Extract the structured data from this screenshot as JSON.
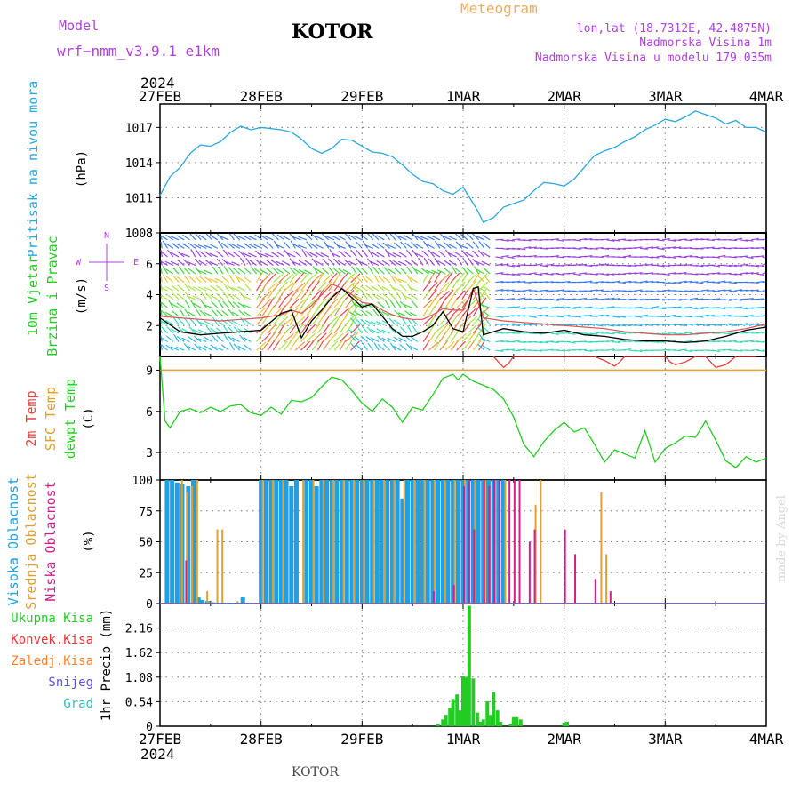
{
  "header": {
    "model_label": "Model",
    "model_name": "wrf−nmm_v3.9.1  e1km",
    "station": "KOTOR",
    "meteogram": "Meteogram",
    "lonlat": "lon,lat (18.7312E, 42.4875N)",
    "elevation": "Nadmorska Visina 1m",
    "model_elevation": "Nadmorska Visina u modelu 179.035m",
    "year_top": "2024",
    "year_bottom": "2024",
    "footer_station": "KOTOR",
    "credit": "made by Angel"
  },
  "colors": {
    "pressure": "#2aa8e0",
    "temp_2m": "#e8403a",
    "sfc_temp": "#e3a02c",
    "dewpt": "#22cc22",
    "high_cloud": "#1fa0e6",
    "mid_cloud": "#e0a030",
    "low_cloud": "#d02090",
    "total_precip": "#22cc22",
    "conv_precip": "#ee3333",
    "frz_precip": "#ff7f27",
    "snow": "#5555dd",
    "hail": "#33bbbb",
    "purple_text": "#b040e0",
    "orange_text": "#e8b060"
  },
  "chart_data": [
    {
      "type": "line",
      "panel": "pressure",
      "ylabel_left": "Pritisak na nivou mora",
      "unit": "(hPa)",
      "x_ticks": [
        "27FEB",
        "28FEB",
        "29FEB",
        "1MAR",
        "2MAR",
        "3MAR",
        "4MAR"
      ],
      "x_range_days": [
        0,
        6
      ],
      "ylim": [
        1008,
        1019
      ],
      "y_ticks": [
        1008,
        1011,
        1014,
        1017
      ],
      "grid": true,
      "series": [
        {
          "key": "pressure",
          "x": [
            0,
            0.1,
            0.2,
            0.3,
            0.4,
            0.5,
            0.6,
            0.7,
            0.8,
            0.9,
            1.0,
            1.1,
            1.2,
            1.3,
            1.4,
            1.5,
            1.6,
            1.7,
            1.8,
            1.9,
            2.0,
            2.1,
            2.2,
            2.3,
            2.4,
            2.5,
            2.6,
            2.7,
            2.8,
            2.9,
            3.0,
            3.1,
            3.15,
            3.2,
            3.3,
            3.4,
            3.5,
            3.6,
            3.7,
            3.8,
            3.9,
            4.0,
            4.1,
            4.2,
            4.3,
            4.4,
            4.5,
            4.6,
            4.7,
            4.8,
            4.9,
            5.0,
            5.1,
            5.2,
            5.3,
            5.4,
            5.5,
            5.6,
            5.7,
            5.8,
            5.9,
            6.0
          ],
          "y": [
            1011.2,
            1012.8,
            1013.6,
            1014.8,
            1015.5,
            1015.4,
            1015.8,
            1016.6,
            1017.1,
            1016.8,
            1017.0,
            1016.9,
            1016.8,
            1016.6,
            1016.0,
            1015.2,
            1014.8,
            1015.2,
            1016.0,
            1015.9,
            1015.4,
            1014.9,
            1014.8,
            1014.5,
            1013.8,
            1013.0,
            1012.4,
            1012.2,
            1011.6,
            1011.3,
            1011.9,
            1010.5,
            1009.8,
            1008.9,
            1009.3,
            1010.2,
            1010.5,
            1010.8,
            1011.6,
            1012.3,
            1012.2,
            1012.0,
            1012.6,
            1013.6,
            1014.6,
            1015.0,
            1015.3,
            1015.8,
            1016.2,
            1016.8,
            1017.2,
            1017.7,
            1017.5,
            1017.9,
            1018.4,
            1018.1,
            1017.8,
            1017.3,
            1017.6,
            1017.0,
            1017.0,
            1016.6
          ]
        }
      ]
    },
    {
      "type": "line",
      "panel": "wind",
      "ylabel_left": [
        "10m Vjetar",
        "Brzina i Pravac"
      ],
      "unit": "(m/s)",
      "compass": [
        "N",
        "W",
        "E",
        "S"
      ],
      "ylim": [
        0,
        8
      ],
      "y_ticks": [
        2,
        4,
        6,
        8
      ],
      "note": "dense colored wind-direction arrows fill the panel",
      "series": [
        {
          "key": "speed",
          "color": "#000000",
          "x": [
            0,
            0.2,
            0.4,
            0.6,
            0.8,
            1.0,
            1.2,
            1.3,
            1.4,
            1.5,
            1.6,
            1.7,
            1.8,
            1.9,
            2.0,
            2.1,
            2.2,
            2.3,
            2.4,
            2.5,
            2.6,
            2.7,
            2.8,
            2.9,
            3.0,
            3.1,
            3.15,
            3.2,
            3.3,
            3.4,
            3.6,
            3.8,
            4.0,
            4.2,
            4.4,
            4.6,
            4.8,
            5.0,
            5.2,
            5.4,
            5.6,
            5.8,
            6.0
          ],
          "y": [
            2.5,
            1.6,
            1.4,
            1.5,
            1.6,
            1.7,
            2.8,
            3.0,
            1.2,
            2.3,
            3.0,
            3.8,
            4.4,
            3.8,
            3.2,
            3.4,
            2.6,
            1.8,
            1.3,
            1.3,
            1.6,
            2.0,
            2.9,
            1.8,
            1.6,
            4.4,
            4.5,
            1.4,
            1.6,
            1.8,
            1.6,
            1.5,
            1.7,
            1.4,
            1.3,
            1.1,
            1.0,
            1.0,
            0.9,
            1.0,
            1.3,
            1.7,
            1.9
          ]
        },
        {
          "key": "gust",
          "color": "#e05050",
          "x": [
            0,
            0.2,
            0.4,
            0.6,
            0.8,
            1.0,
            1.2,
            1.3,
            1.4,
            1.5,
            1.6,
            1.7,
            1.8,
            1.9,
            2.0,
            2.1,
            2.2,
            2.3,
            2.4,
            2.5,
            2.6,
            2.7,
            2.8,
            2.9,
            3.0,
            3.1,
            3.2,
            3.3,
            3.4,
            3.6,
            3.8,
            4.0,
            4.2,
            4.4,
            4.6,
            4.8,
            5.0,
            5.2,
            5.4,
            5.6,
            5.8,
            6.0
          ],
          "y": [
            2.6,
            2.5,
            2.4,
            2.3,
            2.4,
            2.5,
            2.7,
            3.0,
            2.8,
            3.3,
            4.0,
            4.7,
            4.4,
            4.0,
            3.5,
            3.4,
            3.0,
            2.7,
            2.5,
            2.4,
            2.4,
            2.7,
            3.1,
            3.0,
            3.0,
            4.4,
            2.5,
            2.4,
            2.3,
            2.2,
            2.1,
            2.0,
            1.9,
            1.8,
            1.6,
            1.5,
            1.4,
            1.4,
            1.5,
            1.6,
            1.8,
            2.1
          ]
        }
      ]
    },
    {
      "type": "line",
      "panel": "temperature",
      "ylabel_left": [
        "2m Temp",
        "SFC Temp",
        "dewpt Temp"
      ],
      "unit": "(C)",
      "ylim": [
        1,
        10
      ],
      "y_ticks": [
        3,
        6,
        9
      ],
      "series": [
        {
          "key": "temp_2m",
          "x": [
            3.3,
            3.35,
            3.4,
            3.45,
            3.5,
            3.9,
            4.3,
            4.4,
            4.5,
            4.55,
            4.6,
            4.65,
            5.0,
            5.05,
            5.1,
            5.2,
            5.3,
            5.4,
            5.5,
            5.6,
            5.7,
            5.8,
            5.9
          ],
          "y": [
            10,
            9.6,
            9.2,
            9.5,
            10,
            10,
            10,
            9.7,
            9.3,
            9.6,
            10,
            10,
            10,
            9.6,
            9.4,
            9.6,
            10,
            10,
            9.2,
            9.4,
            10,
            10,
            10
          ]
        },
        {
          "key": "sfc_temp",
          "x": [
            0,
            6
          ],
          "y": [
            9.0,
            9.0
          ]
        },
        {
          "key": "dewpt",
          "x": [
            0,
            0.05,
            0.1,
            0.15,
            0.2,
            0.3,
            0.4,
            0.5,
            0.6,
            0.7,
            0.8,
            0.9,
            1.0,
            1.1,
            1.2,
            1.3,
            1.4,
            1.5,
            1.6,
            1.7,
            1.8,
            1.9,
            2.0,
            2.1,
            2.2,
            2.3,
            2.4,
            2.5,
            2.6,
            2.7,
            2.8,
            2.9,
            2.95,
            3.0,
            3.1,
            3.2,
            3.3,
            3.4,
            3.5,
            3.6,
            3.7,
            3.8,
            3.9,
            4.0,
            4.1,
            4.2,
            4.3,
            4.4,
            4.5,
            4.6,
            4.7,
            4.8,
            4.9,
            5.0,
            5.1,
            5.2,
            5.3,
            5.4,
            5.5,
            5.6,
            5.7,
            5.8,
            5.9,
            6.0
          ],
          "y": [
            10,
            5.3,
            4.8,
            5.4,
            6.0,
            6.2,
            5.9,
            6.3,
            6.0,
            6.4,
            6.5,
            5.9,
            5.7,
            6.3,
            5.8,
            6.8,
            6.7,
            7.0,
            7.8,
            8.5,
            8.3,
            7.5,
            6.6,
            6.0,
            6.9,
            6.3,
            5.2,
            6.3,
            6.1,
            7.2,
            8.4,
            8.7,
            8.3,
            8.7,
            8.2,
            7.9,
            7.6,
            6.9,
            5.6,
            3.6,
            2.7,
            3.8,
            4.6,
            5.2,
            4.5,
            4.8,
            3.6,
            2.3,
            3.2,
            2.9,
            2.6,
            4.6,
            2.3,
            3.3,
            3.7,
            4.2,
            4.1,
            5.3,
            3.9,
            2.4,
            1.9,
            2.7,
            2.3,
            2.6
          ]
        }
      ]
    },
    {
      "type": "bar",
      "panel": "cloud",
      "ylabel_left": [
        "Visoka Oblacnost",
        "Srednja Oblacnost",
        "Niska Oblacnost"
      ],
      "unit": "(%)",
      "ylim": [
        0,
        100
      ],
      "y_ticks": [
        0,
        25,
        50,
        75,
        100
      ],
      "series": [
        {
          "key": "high_cloud",
          "x": [
            0.07,
            0.12,
            0.17,
            0.22,
            0.28,
            0.33,
            0.38,
            0.42,
            0.47,
            0.52,
            0.57,
            0.62,
            0.67,
            0.72,
            0.77,
            0.82,
            0.87,
            1.0,
            1.05,
            1.1,
            1.15,
            1.2,
            1.25,
            1.3,
            1.35,
            1.45,
            1.5,
            1.55,
            1.6,
            1.65,
            1.7,
            1.75,
            1.8,
            1.85,
            1.9,
            1.95,
            2.0,
            2.05,
            2.1,
            2.15,
            2.2,
            2.25,
            2.3,
            2.35,
            2.4,
            2.45,
            2.5,
            2.55,
            2.6,
            2.65,
            2.7,
            2.75,
            2.8,
            2.85,
            2.9,
            2.95,
            3.0,
            3.05,
            3.1,
            3.15,
            3.2,
            3.25,
            3.3,
            3.35,
            3.4
          ],
          "y": [
            100,
            100,
            98,
            97,
            95,
            100,
            5,
            3,
            2,
            1,
            0,
            0,
            0,
            0,
            0,
            5,
            0,
            100,
            100,
            100,
            100,
            100,
            100,
            95,
            100,
            100,
            100,
            95,
            100,
            100,
            100,
            100,
            100,
            100,
            100,
            100,
            100,
            100,
            100,
            100,
            100,
            100,
            100,
            100,
            85,
            100,
            100,
            100,
            100,
            100,
            100,
            100,
            100,
            100,
            100,
            100,
            100,
            100,
            100,
            100,
            100,
            100,
            100,
            100,
            100
          ]
        },
        {
          "key": "mid_cloud",
          "x": [
            0.2,
            0.25,
            0.3,
            0.35,
            0.45,
            0.55,
            0.6,
            0.75,
            1.0,
            1.1,
            1.2,
            1.4,
            1.5,
            1.6,
            1.7,
            1.8,
            1.9,
            2.0,
            2.1,
            2.2,
            2.3,
            2.4,
            2.5,
            2.6,
            2.7,
            2.8,
            2.9,
            3.0,
            3.1,
            3.2,
            3.3,
            3.4,
            3.7,
            3.75,
            4.35,
            4.4
          ],
          "y": [
            100,
            90,
            95,
            100,
            10,
            60,
            60,
            2,
            100,
            100,
            100,
            100,
            100,
            100,
            100,
            100,
            100,
            100,
            100,
            100,
            100,
            100,
            100,
            100,
            100,
            100,
            100,
            100,
            100,
            100,
            100,
            100,
            80,
            100,
            90,
            40
          ]
        },
        {
          "key": "low_cloud",
          "x": [
            0.25,
            2.7,
            2.9,
            3.0,
            3.05,
            3.1,
            3.2,
            3.25,
            3.3,
            3.35,
            3.45,
            3.5,
            3.55,
            3.65,
            3.7,
            4.0,
            4.1,
            4.3,
            4.45
          ],
          "y": [
            35,
            10,
            15,
            95,
            100,
            60,
            100,
            95,
            100,
            100,
            100,
            100,
            100,
            50,
            60,
            60,
            40,
            20,
            10
          ]
        }
      ]
    },
    {
      "type": "bar",
      "panel": "precip",
      "ylabel_left": "1hr Precip (mm)",
      "legend": [
        "Ukupna Kisa",
        "Konvek.Kisa",
        "Zaledj.Kisa",
        "Snijeg",
        "Grad"
      ],
      "ylim": [
        0,
        2.7
      ],
      "y_ticks": [
        0,
        0.54,
        1.08,
        1.62,
        2.16
      ],
      "series": [
        {
          "key": "total_precip",
          "x": [
            2.75,
            2.8,
            2.83,
            2.87,
            2.9,
            2.94,
            2.97,
            3.0,
            3.03,
            3.06,
            3.1,
            3.14,
            3.17,
            3.2,
            3.24,
            3.27,
            3.3,
            3.34,
            3.37,
            3.47,
            3.5,
            3.53,
            3.57,
            4.0,
            4.03
          ],
          "y": [
            0.05,
            0.15,
            0.25,
            0.4,
            0.6,
            0.7,
            0.35,
            1.1,
            1.08,
            2.65,
            1.05,
            0.3,
            0.1,
            0.15,
            0.55,
            0.25,
            0.75,
            0.35,
            0.1,
            0.05,
            0.2,
            0.2,
            0.15,
            0.08,
            0.1
          ]
        }
      ]
    }
  ]
}
